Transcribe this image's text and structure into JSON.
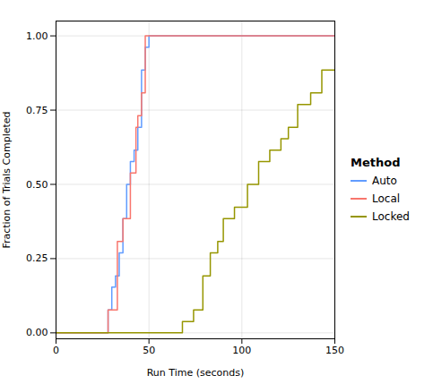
{
  "chart_data": {
    "type": "line",
    "xlabel": "Run Time (seconds)",
    "ylabel": "Fraction of Trials Completed",
    "xlim": [
      0,
      150
    ],
    "ylim": [
      -0.02,
      1.05
    ],
    "xticks": [
      0,
      50,
      100,
      150
    ],
    "yticks": [
      {
        "value": 0.0,
        "label": "0.00"
      },
      {
        "value": 0.25,
        "label": "0.25"
      },
      {
        "value": 0.5,
        "label": "0.50"
      },
      {
        "value": 0.75,
        "label": "0.75"
      },
      {
        "value": 1.0,
        "label": "1.00"
      }
    ],
    "grid": true,
    "legend": "right",
    "legend_title": "Method",
    "series": [
      {
        "name": "Auto",
        "color": "#619CFF",
        "x": [
          0,
          28,
          28,
          30,
          30,
          32,
          32,
          34,
          34,
          36,
          36,
          38,
          38,
          40,
          40,
          42,
          42,
          44,
          44,
          46,
          46,
          48,
          48,
          50,
          50,
          150
        ],
        "values": [
          0,
          0,
          0.077,
          0.077,
          0.154,
          0.154,
          0.192,
          0.192,
          0.269,
          0.269,
          0.385,
          0.385,
          0.5,
          0.5,
          0.577,
          0.577,
          0.615,
          0.615,
          0.692,
          0.692,
          0.885,
          0.885,
          0.962,
          0.962,
          1.0,
          1.0
        ]
      },
      {
        "name": "Local",
        "color": "#F8766D",
        "x": [
          0,
          28,
          28,
          33,
          33,
          36,
          36,
          40,
          40,
          43,
          43,
          44,
          44,
          46,
          46,
          48,
          48,
          50,
          50,
          150
        ],
        "values": [
          0,
          0,
          0.077,
          0.077,
          0.308,
          0.308,
          0.385,
          0.385,
          0.538,
          0.538,
          0.692,
          0.692,
          0.731,
          0.731,
          0.808,
          0.808,
          1.0,
          1.0,
          1.0,
          1.0
        ]
      },
      {
        "name": "Locked",
        "color": "#969600",
        "x": [
          0,
          68,
          68,
          74,
          74,
          79,
          79,
          83,
          83,
          87,
          87,
          90,
          90,
          96,
          96,
          103,
          103,
          109,
          109,
          115,
          115,
          121,
          121,
          125,
          125,
          130,
          130,
          137,
          137,
          143,
          143,
          150
        ],
        "values": [
          0,
          0,
          0.038,
          0.038,
          0.077,
          0.077,
          0.192,
          0.192,
          0.269,
          0.269,
          0.308,
          0.308,
          0.385,
          0.385,
          0.423,
          0.423,
          0.5,
          0.5,
          0.577,
          0.577,
          0.615,
          0.615,
          0.654,
          0.654,
          0.692,
          0.692,
          0.769,
          0.769,
          0.808,
          0.808,
          0.885,
          0.885
        ]
      }
    ]
  }
}
